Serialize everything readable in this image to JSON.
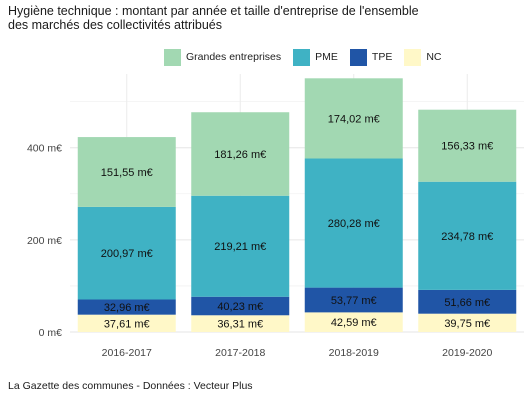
{
  "title_lines": [
    "Hygiène technique : montant par année et taille d'entreprise de l'ensemble",
    "des marchés des collectivités attribués"
  ],
  "source": "La Gazette des communes - Données : Vecteur Plus",
  "chart_data": {
    "type": "bar",
    "stacked": true,
    "categories": [
      "2016-2017",
      "2017-2018",
      "2018-2019",
      "2019-2020"
    ],
    "series": [
      {
        "name": "NC",
        "color": "#fff8c8",
        "values": [
          37.61,
          36.31,
          42.59,
          39.75
        ],
        "labels": [
          "37,61 m€",
          "36,31 m€",
          "42,59 m€",
          "39,75 m€"
        ]
      },
      {
        "name": "TPE",
        "color": "#2055a6",
        "values": [
          32.96,
          40.23,
          53.77,
          51.66
        ],
        "labels": [
          "32,96 m€",
          "40,23 m€",
          "53,77 m€",
          "51,66 m€"
        ]
      },
      {
        "name": "PME",
        "color": "#3fb2c4",
        "values": [
          200.97,
          219.21,
          280.28,
          234.78
        ],
        "labels": [
          "200,97 m€",
          "219,21 m€",
          "280,28 m€",
          "234,78 m€"
        ]
      },
      {
        "name": "Grandes entreprises",
        "color": "#a2d8b2",
        "values": [
          151.55,
          181.26,
          174.02,
          156.33
        ],
        "labels": [
          "151,55 m€",
          "181,26 m€",
          "174,02 m€",
          "156,33 m€"
        ]
      }
    ],
    "legend_order": [
      "Grandes entreprises",
      "PME",
      "TPE",
      "NC"
    ],
    "legend_position": "top",
    "yticks": [
      0,
      200,
      400
    ],
    "ytick_labels": [
      "0 m€",
      "200 m€",
      "400 m€"
    ],
    "ylim": [
      0,
      560
    ],
    "grid": true
  }
}
